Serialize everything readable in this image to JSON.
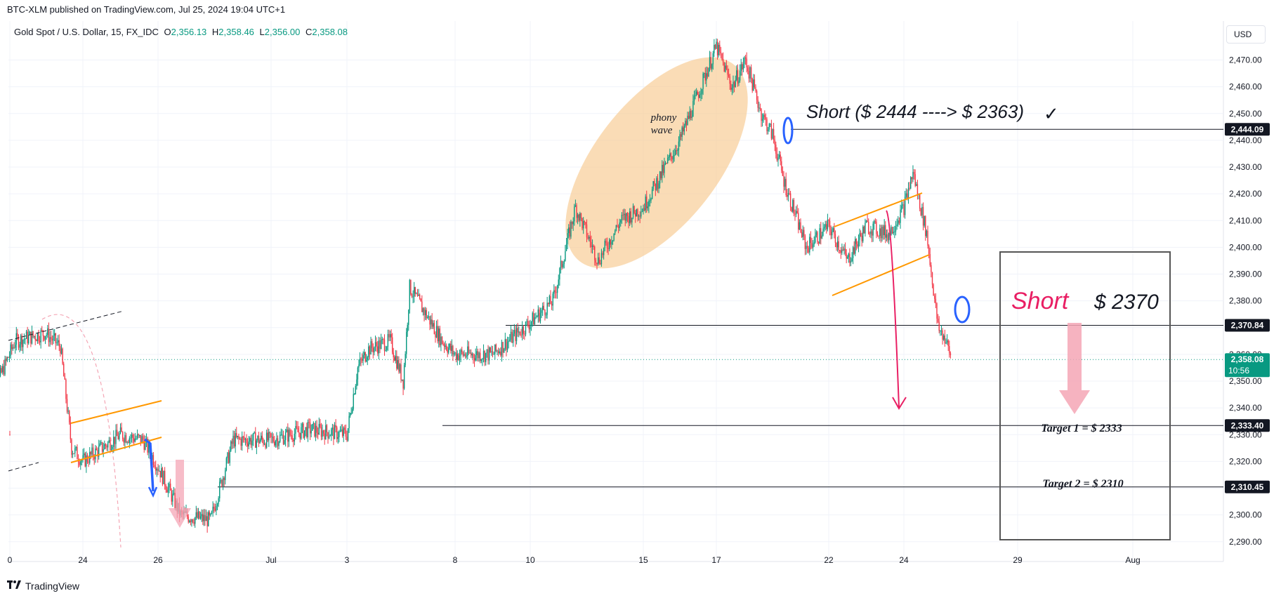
{
  "header": {
    "published_by": "BTC-XLM published on TradingView.com, Jul 25, 2024 19:04 UTC+1"
  },
  "symbol": {
    "name": "Gold Spot / U.S. Dollar, 15, FX_IDC",
    "open_label": "O",
    "open": "2,356.13",
    "high_label": "H",
    "high": "2,358.46",
    "low_label": "L",
    "low": "2,356.00",
    "close_label": "C",
    "close": "2,358.08"
  },
  "currency_button": "USD",
  "footer": {
    "brand": "TradingView",
    "logo_icon": "tradingview-logo-icon"
  },
  "colors": {
    "up": "#089981",
    "down": "#f23645",
    "orange_channel": "#ff9800",
    "blue_marker": "#2962ff",
    "pink_arrow": "#e91e63",
    "phony_wave_fill": "#f7c98f",
    "price_tag_bg": "#131722",
    "current_tag_bg": "#089981"
  },
  "chart_data": {
    "type": "candlestick",
    "title": "",
    "x_tick_labels": [
      "0",
      "24",
      "26",
      "Jul",
      "3",
      "8",
      "10",
      "15",
      "17",
      "22",
      "24",
      "29",
      "Aug"
    ],
    "y_tick_labels": [
      "2,290.00",
      "2,300.00",
      "2,310.00",
      "2,320.00",
      "2,330.00",
      "2,340.00",
      "2,350.00",
      "2,360.00",
      "2,370.00",
      "2,380.00",
      "2,390.00",
      "2,400.00",
      "2,410.00",
      "2,420.00",
      "2,430.00",
      "2,440.00",
      "2,450.00",
      "2,460.00",
      "2,470.00"
    ],
    "ylim": [
      2286,
      2478
    ],
    "price_path": [
      {
        "x": "0",
        "price": 2330
      },
      {
        "x": "0.5",
        "price": 2342
      },
      {
        "x": "1.2",
        "price": 2365
      },
      {
        "x": "2.0",
        "price": 2368
      },
      {
        "x": "2.4",
        "price": 2363
      },
      {
        "x": "2.7",
        "price": 2325
      },
      {
        "x": "24",
        "price": 2320
      },
      {
        "x": "25.0",
        "price": 2330
      },
      {
        "x": "25.6",
        "price": 2328
      },
      {
        "x": "26",
        "price": 2318
      },
      {
        "x": "26.6",
        "price": 2300
      },
      {
        "x": "27.4",
        "price": 2298
      },
      {
        "x": "28",
        "price": 2328
      },
      {
        "x": "Jul",
        "price": 2328
      },
      {
        "x": "2",
        "price": 2332
      },
      {
        "x": "3",
        "price": 2330
      },
      {
        "x": "3.5",
        "price": 2355
      },
      {
        "x": "4",
        "price": 2362
      },
      {
        "x": "5",
        "price": 2365
      },
      {
        "x": "5.6",
        "price": 2350
      },
      {
        "x": "5.9",
        "price": 2385
      },
      {
        "x": "7.4",
        "price": 2365
      },
      {
        "x": "8",
        "price": 2360
      },
      {
        "x": "9",
        "price": 2360
      },
      {
        "x": "10",
        "price": 2372
      },
      {
        "x": "11",
        "price": 2380
      },
      {
        "x": "12",
        "price": 2415
      },
      {
        "x": "13",
        "price": 2395
      },
      {
        "x": "14",
        "price": 2410
      },
      {
        "x": "15",
        "price": 2415
      },
      {
        "x": "16",
        "price": 2440
      },
      {
        "x": "17",
        "price": 2475
      },
      {
        "x": "17.7",
        "price": 2460
      },
      {
        "x": "18.3",
        "price": 2470
      },
      {
        "x": "19",
        "price": 2450
      },
      {
        "x": "19.5",
        "price": 2442
      },
      {
        "x": "20",
        "price": 2425
      },
      {
        "x": "21",
        "price": 2400
      },
      {
        "x": "22",
        "price": 2408
      },
      {
        "x": "22.5",
        "price": 2395
      },
      {
        "x": "23",
        "price": 2408
      },
      {
        "x": "23.6",
        "price": 2405
      },
      {
        "x": "24",
        "price": 2415
      },
      {
        "x": "24.4",
        "price": 2428
      },
      {
        "x": "25",
        "price": 2405
      },
      {
        "x": "25.5",
        "price": 2370
      },
      {
        "x": "25.8",
        "price": 2366
      },
      {
        "x": "26.1",
        "price": 2358
      }
    ],
    "horizontal_levels": [
      {
        "price": 2444.09,
        "tag": "2,444.09"
      },
      {
        "price": 2370.84,
        "tag": "2,370.84"
      },
      {
        "price": 2333.4,
        "tag": "2,333.40"
      },
      {
        "price": 2310.45,
        "tag": "2,310.45"
      }
    ],
    "current_price": {
      "tag": "2,358.08",
      "countdown": "10:56"
    },
    "annotations": {
      "phony_wave": "phony\nwave",
      "short_trade": "Short ($ 2444 ----> $ 2363)",
      "short_trade_check": "✓",
      "short_label": "Short",
      "short_price": "$ 2370",
      "target1": "Target 1 = $ 2333",
      "target2": "Target 2 = $ 2310"
    }
  }
}
